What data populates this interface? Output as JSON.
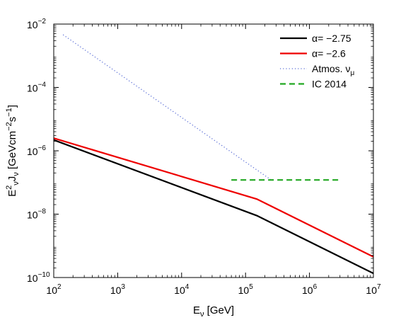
{
  "chart_data": {
    "type": "line",
    "xscale": "log",
    "yscale": "log",
    "xlim": [
      100,
      10000000
    ],
    "ylim": [
      1e-10,
      0.01
    ],
    "grid": false,
    "legend_position": "top-right",
    "xlabel": {
      "base": "E",
      "sub": "ν",
      "rest": " [GeV]"
    },
    "ylabel": {
      "parts": [
        {
          "t": "E",
          "s": "normal"
        },
        {
          "t": "2",
          "s": "sup"
        },
        {
          "t": "ν",
          "s": "sub"
        },
        {
          "t": "J",
          "s": "normal"
        },
        {
          "t": "ν",
          "s": "sub"
        },
        {
          "t": " [GeVcm",
          "s": "normal"
        },
        {
          "t": "−2",
          "s": "sup"
        },
        {
          "t": "s",
          "s": "normal"
        },
        {
          "t": "−1",
          "s": "sup"
        },
        {
          "t": "]",
          "s": "normal"
        }
      ]
    },
    "xticks": [
      {
        "value": 100,
        "base": "10",
        "exp": "2"
      },
      {
        "value": 1000,
        "base": "10",
        "exp": "3"
      },
      {
        "value": 10000,
        "base": "10",
        "exp": "4"
      },
      {
        "value": 100000,
        "base": "10",
        "exp": "5"
      },
      {
        "value": 1000000,
        "base": "10",
        "exp": "6"
      },
      {
        "value": 10000000,
        "base": "10",
        "exp": "7"
      }
    ],
    "yticks": [
      {
        "value": 1e-10,
        "base": "10",
        "exp": "−10"
      },
      {
        "value": 1e-08,
        "base": "10",
        "exp": "−8"
      },
      {
        "value": 1e-06,
        "base": "10",
        "exp": "−6"
      },
      {
        "value": 0.0001,
        "base": "10",
        "exp": "−4"
      },
      {
        "value": 0.01,
        "base": "10",
        "exp": "−2"
      }
    ],
    "series": [
      {
        "name": "α= −2.75",
        "label_main": "α= −2.75",
        "label_sub": "",
        "color": "#000000",
        "dash": "solid",
        "x": [
          100,
          150000,
          10000000
        ],
        "y": [
          2.2e-06,
          9e-09,
          1.35e-10
        ]
      },
      {
        "name": "α= −2.6",
        "label_main": "α= −2.6",
        "label_sub": "",
        "color": "#ee0000",
        "dash": "solid",
        "x": [
          100,
          150000,
          10000000
        ],
        "y": [
          2.5e-06,
          3e-08,
          4.5e-10
        ]
      },
      {
        "name": "Atmos. νμ",
        "label_main": "Atmos. ν",
        "label_sub": "μ",
        "color": "#5b6fd6",
        "dash": "dotted",
        "x": [
          140,
          260000
        ],
        "y": [
          0.0046,
          1.15e-07
        ]
      },
      {
        "name": "IC 2014",
        "label_main": "IC 2014",
        "label_sub": "",
        "color": "#22a822",
        "dash": "dashed",
        "x": [
          60000,
          3000000
        ],
        "y": [
          1.2e-07,
          1.2e-07
        ]
      }
    ]
  }
}
